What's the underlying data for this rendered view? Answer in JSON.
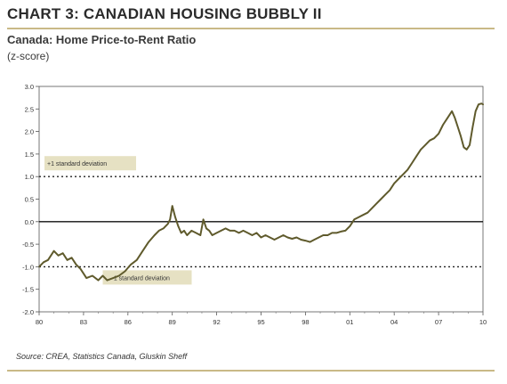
{
  "header": {
    "title": "CHART 3: CANADIAN HOUSING BUBBLY II",
    "subtitle": "Canada:  Home Price-to-Rent Ratio",
    "units": "(z-score)"
  },
  "footer": {
    "source": "Source: CREA, Statistics Canada, Gluskin Sheff"
  },
  "colors": {
    "line": "#5f5a2c",
    "annotation_bg": "#e6e1c3",
    "rule": "#c9b987"
  },
  "chart_data": {
    "type": "line",
    "title": "Canada:  Home Price-to-Rent Ratio",
    "ylabel": "(z-score)",
    "xlim": [
      1980,
      2010
    ],
    "ylim": [
      -2.0,
      3.0
    ],
    "x_ticks": [
      1980,
      1983,
      1986,
      1989,
      1992,
      1995,
      1998,
      2001,
      2004,
      2007,
      2010
    ],
    "x_tick_labels": [
      "80",
      "83",
      "86",
      "89",
      "92",
      "95",
      "98",
      "01",
      "04",
      "07",
      "10"
    ],
    "y_ticks": [
      -2.0,
      -1.5,
      -1.0,
      -0.5,
      0.0,
      0.5,
      1.0,
      1.5,
      2.0,
      2.5,
      3.0
    ],
    "y_tick_labels": [
      "-2.0",
      "-1.5",
      "-1.0",
      "-0.5",
      "0.0",
      "0.5",
      "1.0",
      "1.5",
      "2.0",
      "2.5",
      "3.0"
    ],
    "grid": false,
    "reference_lines": [
      {
        "y": 1.0,
        "style": "dotted",
        "label": "+1 standard deviation"
      },
      {
        "y": -1.0,
        "style": "dotted",
        "label": "-1 standard deviation"
      },
      {
        "y": 0.0,
        "style": "solid"
      }
    ],
    "series": [
      {
        "x": [
          1980.0,
          1980.3,
          1980.6,
          1981.0,
          1981.3,
          1981.6,
          1981.9,
          1982.2,
          1982.5,
          1982.8,
          1983.2,
          1983.6,
          1984.0,
          1984.3,
          1984.6,
          1985.0,
          1985.4,
          1985.8,
          1986.2,
          1986.6,
          1987.0,
          1987.4,
          1987.8,
          1988.1,
          1988.4,
          1988.7,
          1988.85,
          1989.0,
          1989.2,
          1989.4,
          1989.6,
          1989.8,
          1990.0,
          1990.3,
          1990.6,
          1990.9,
          1991.1,
          1991.3,
          1991.5,
          1991.7,
          1992.0,
          1992.3,
          1992.6,
          1992.9,
          1993.2,
          1993.5,
          1993.8,
          1994.1,
          1994.4,
          1994.7,
          1995.0,
          1995.3,
          1995.6,
          1995.9,
          1996.2,
          1996.5,
          1996.8,
          1997.1,
          1997.4,
          1997.7,
          1998.0,
          1998.3,
          1998.6,
          1998.9,
          1999.2,
          1999.5,
          1999.8,
          2000.1,
          2000.4,
          2000.7,
          2001.0,
          2001.3,
          2001.6,
          2001.9,
          2002.2,
          2002.5,
          2002.8,
          2003.1,
          2003.4,
          2003.7,
          2004.0,
          2004.3,
          2004.6,
          2004.9,
          2005.2,
          2005.5,
          2005.8,
          2006.1,
          2006.4,
          2006.7,
          2007.0,
          2007.3,
          2007.6,
          2007.9,
          2008.1,
          2008.3,
          2008.5,
          2008.7,
          2008.9,
          2009.1,
          2009.3,
          2009.5,
          2009.7,
          2009.9,
          2010.0
        ],
        "values": [
          -1.0,
          -0.9,
          -0.85,
          -0.65,
          -0.75,
          -0.7,
          -0.85,
          -0.8,
          -0.95,
          -1.05,
          -1.25,
          -1.2,
          -1.3,
          -1.2,
          -1.3,
          -1.25,
          -1.2,
          -1.1,
          -0.95,
          -0.85,
          -0.65,
          -0.45,
          -0.3,
          -0.2,
          -0.15,
          -0.05,
          0.05,
          0.35,
          0.1,
          -0.1,
          -0.25,
          -0.2,
          -0.3,
          -0.2,
          -0.25,
          -0.3,
          0.05,
          -0.15,
          -0.2,
          -0.3,
          -0.25,
          -0.2,
          -0.15,
          -0.2,
          -0.2,
          -0.25,
          -0.2,
          -0.25,
          -0.3,
          -0.25,
          -0.35,
          -0.3,
          -0.35,
          -0.4,
          -0.35,
          -0.3,
          -0.35,
          -0.38,
          -0.35,
          -0.4,
          -0.42,
          -0.45,
          -0.4,
          -0.35,
          -0.3,
          -0.3,
          -0.25,
          -0.25,
          -0.22,
          -0.2,
          -0.1,
          0.05,
          0.1,
          0.15,
          0.2,
          0.3,
          0.4,
          0.5,
          0.6,
          0.7,
          0.85,
          0.95,
          1.05,
          1.15,
          1.3,
          1.45,
          1.6,
          1.7,
          1.8,
          1.85,
          1.95,
          2.15,
          2.3,
          2.45,
          2.3,
          2.1,
          1.9,
          1.65,
          1.6,
          1.7,
          2.1,
          2.45,
          2.6,
          2.62,
          2.6
        ]
      }
    ]
  }
}
